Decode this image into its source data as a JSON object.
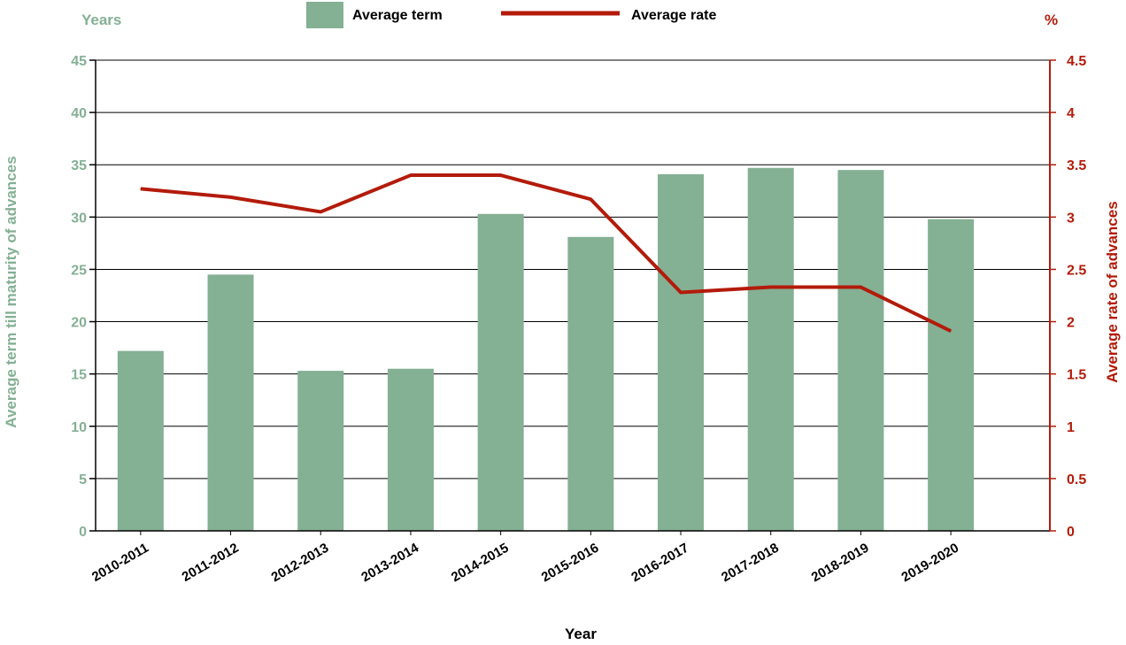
{
  "chart_data": {
    "type": "bar",
    "categories": [
      "2010-2011",
      "2011-2012",
      "2012-2013",
      "2013-2014",
      "2014-2015",
      "2015-2016",
      "2016-2017",
      "2017-2018",
      "2018-2019",
      "2019-2020"
    ],
    "series": [
      {
        "name": "Average term",
        "type": "bar",
        "axis": "left",
        "values": [
          17.2,
          24.5,
          15.3,
          15.5,
          30.3,
          28.1,
          34.1,
          34.7,
          34.5,
          29.8
        ]
      },
      {
        "name": "Average rate",
        "type": "line",
        "axis": "right",
        "values": [
          3.27,
          3.19,
          3.05,
          3.4,
          3.4,
          3.17,
          2.28,
          2.33,
          2.33,
          1.91
        ]
      }
    ],
    "left_axis": {
      "unit": "Years",
      "label": "Average term till maturity of advances",
      "ylim": [
        0,
        45
      ],
      "ticks": [
        "0",
        "5",
        "10",
        "15",
        "20",
        "25",
        "30",
        "35",
        "40",
        "45"
      ]
    },
    "right_axis": {
      "unit": "%",
      "label": "Average rate of advances",
      "ylim": [
        0,
        4.5
      ],
      "ticks": [
        "0",
        "0.5",
        "1",
        "1.5",
        "2",
        "2.5",
        "3",
        "3.5",
        "4",
        "4.5"
      ]
    },
    "xlabel": "Year",
    "grid": true,
    "legend_position": "top-center",
    "colors": {
      "bar": "#84b094",
      "line": "#b31b0a",
      "left_axis_text": "#84b094",
      "right_axis_text": "#b31b0a"
    }
  }
}
